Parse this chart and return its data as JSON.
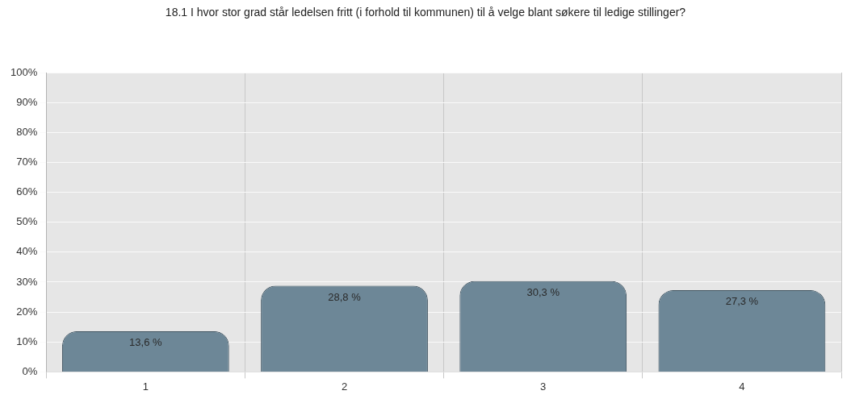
{
  "chart_data": {
    "type": "bar",
    "title": "18.1 I hvor stor grad står ledelsen fritt (i forhold til kommunen) til å velge blant søkere til ledige stillinger?",
    "categories": [
      "1",
      "2",
      "3",
      "4"
    ],
    "values": [
      13.6,
      28.8,
      30.3,
      27.3
    ],
    "value_labels": [
      "13,6 %",
      "28,8 %",
      "30,3 %",
      "27,3 %"
    ],
    "color": "#6d8797",
    "ylim": [
      0,
      100
    ],
    "yticks": [
      {
        "value": 0,
        "label": "0%"
      },
      {
        "value": 10,
        "label": "10%"
      },
      {
        "value": 20,
        "label": "20%"
      },
      {
        "value": 30,
        "label": "30%"
      },
      {
        "value": 40,
        "label": "40%"
      },
      {
        "value": 50,
        "label": "50%"
      },
      {
        "value": 60,
        "label": "60%"
      },
      {
        "value": 70,
        "label": "70%"
      },
      {
        "value": 80,
        "label": "80%"
      },
      {
        "value": 90,
        "label": "90%"
      },
      {
        "value": 100,
        "label": "100%"
      }
    ],
    "grid": true,
    "legend": false
  }
}
